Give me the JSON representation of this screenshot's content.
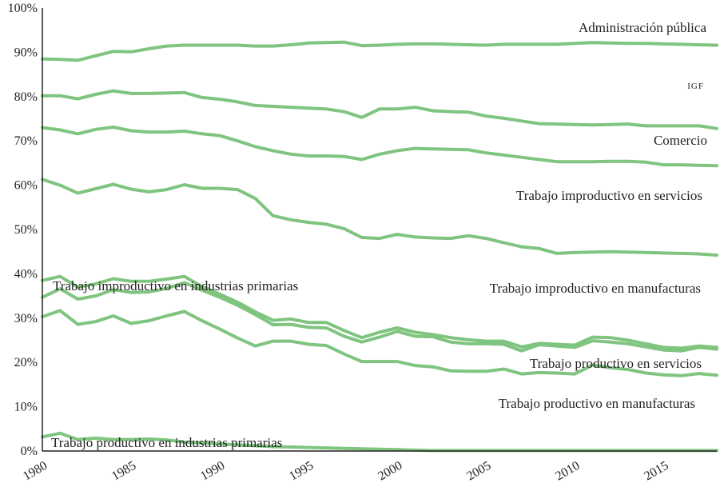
{
  "chart_data": {
    "type": "line",
    "title": "",
    "xlabel": "",
    "ylabel": "",
    "xlim": [
      1980,
      2018
    ],
    "ylim": [
      0,
      100
    ],
    "x_ticks": [
      1980,
      1985,
      1990,
      1995,
      2000,
      2005,
      2010,
      2015
    ],
    "y_ticks": [
      "0%",
      "10%",
      "20%",
      "30%",
      "40%",
      "50%",
      "60%",
      "70%",
      "80%",
      "90%",
      "100%"
    ],
    "x": [
      1980,
      1981,
      1982,
      1983,
      1984,
      1985,
      1986,
      1987,
      1988,
      1989,
      1990,
      1991,
      1992,
      1993,
      1994,
      1995,
      1996,
      1997,
      1998,
      1999,
      2000,
      2001,
      2002,
      2003,
      2004,
      2005,
      2006,
      2007,
      2008,
      2009,
      2010,
      2011,
      2012,
      2013,
      2014,
      2015,
      2016,
      2017,
      2018
    ],
    "series": [
      {
        "name": "Administración pública",
        "values": [
          88.5,
          88.4,
          88.2,
          89.2,
          90.2,
          90.1,
          90.8,
          91.4,
          91.6,
          91.6,
          91.6,
          91.6,
          91.4,
          91.4,
          91.7,
          92.1,
          92.2,
          92.3,
          91.5,
          91.6,
          91.8,
          91.9,
          91.9,
          91.8,
          91.7,
          91.6,
          91.8,
          91.8,
          91.8,
          91.8,
          92.0,
          92.2,
          92.1,
          92.0,
          92.0,
          91.9,
          91.8,
          91.7,
          91.6
        ]
      },
      {
        "name": "IGF",
        "values": [
          80.2,
          80.2,
          79.5,
          80.5,
          81.3,
          80.7,
          80.7,
          80.8,
          80.9,
          79.8,
          79.4,
          78.8,
          78.0,
          77.8,
          77.6,
          77.4,
          77.2,
          76.6,
          75.3,
          77.2,
          77.2,
          77.6,
          76.8,
          76.6,
          76.5,
          75.6,
          75.1,
          74.5,
          73.9,
          73.8,
          73.7,
          73.6,
          73.7,
          73.8,
          73.4,
          73.4,
          73.4,
          73.4,
          72.8
        ]
      },
      {
        "name": "Comercio",
        "values": [
          73.0,
          72.5,
          71.6,
          72.6,
          73.1,
          72.3,
          72.0,
          72.0,
          72.2,
          71.6,
          71.2,
          70.0,
          68.7,
          67.8,
          67.0,
          66.6,
          66.6,
          66.5,
          65.8,
          67.0,
          67.8,
          68.3,
          68.2,
          68.1,
          68.0,
          67.3,
          66.8,
          66.3,
          65.8,
          65.3,
          65.3,
          65.3,
          65.4,
          65.4,
          65.2,
          64.6,
          64.6,
          64.5,
          64.4
        ]
      },
      {
        "name": "Trabajo improductivo en servicios",
        "values": [
          61.3,
          60.0,
          58.2,
          59.2,
          60.2,
          59.1,
          58.5,
          59.0,
          60.1,
          59.3,
          59.3,
          59.0,
          57.0,
          53.1,
          52.2,
          51.6,
          51.2,
          50.2,
          48.2,
          48.0,
          48.9,
          48.3,
          48.1,
          48.0,
          48.6,
          48.0,
          47.0,
          46.1,
          45.7,
          44.6,
          44.8,
          44.9,
          45.0,
          44.9,
          44.8,
          44.7,
          44.6,
          44.5,
          44.2
        ]
      },
      {
        "name": "Trabajo improductivo en manufacturas",
        "values": [
          38.5,
          39.4,
          37.0,
          37.7,
          38.9,
          38.3,
          38.3,
          38.8,
          39.4,
          37.1,
          35.4,
          33.6,
          31.4,
          29.5,
          29.8,
          29.0,
          29.0,
          27.2,
          25.6,
          26.8,
          27.8,
          26.8,
          26.3,
          25.6,
          25.1,
          24.8,
          24.8,
          23.5,
          24.3,
          24.1,
          23.9,
          25.7,
          25.6,
          25.0,
          24.2,
          23.4,
          23.2,
          23.7,
          23.4
        ]
      },
      {
        "name": "Trabajo productivo en servicios",
        "values": [
          34.7,
          36.6,
          34.3,
          35.0,
          36.4,
          35.8,
          35.9,
          36.7,
          38.0,
          36.3,
          34.7,
          32.9,
          30.8,
          28.5,
          28.6,
          27.9,
          27.8,
          25.9,
          24.6,
          25.7,
          27.0,
          25.9,
          25.8,
          24.6,
          24.2,
          24.2,
          24.1,
          22.6,
          24.0,
          23.7,
          23.4,
          24.9,
          24.6,
          24.2,
          23.5,
          22.8,
          22.6,
          23.4,
          23.0
        ]
      },
      {
        "name": "Trabajo productivo en manufacturas",
        "values": [
          30.3,
          31.7,
          28.6,
          29.2,
          30.5,
          28.8,
          29.4,
          30.5,
          31.5,
          29.4,
          27.5,
          25.5,
          23.7,
          24.8,
          24.8,
          24.1,
          23.8,
          21.9,
          20.2,
          20.2,
          20.2,
          19.3,
          19.0,
          18.1,
          18.0,
          18.0,
          18.5,
          17.4,
          17.7,
          17.6,
          17.4,
          19.4,
          18.8,
          18.4,
          17.6,
          17.2,
          17.0,
          17.5,
          17.1
        ]
      },
      {
        "name": "Trabajo productivo en industrias primarias",
        "values": [
          3.2,
          4.0,
          2.6,
          2.9,
          2.6,
          2.6,
          2.7,
          2.5,
          2.0,
          1.8,
          1.6,
          1.4,
          1.2,
          1.0,
          0.9,
          0.8,
          0.7,
          0.6,
          0.5,
          0.4,
          0.3,
          0.2,
          0.1,
          0.1,
          0.1,
          0.1,
          0.1,
          0.1,
          0.1,
          0.1,
          0.1,
          0.1,
          0.1,
          0.1,
          0.1,
          0.1,
          0.1,
          0.1,
          0.1
        ]
      }
    ],
    "annotations": [
      {
        "text": "Administración pública"
      },
      {
        "text": "IGF"
      },
      {
        "text": "Comercio"
      },
      {
        "text": "Trabajo improductivo en servicios"
      },
      {
        "text": "Trabajo improductivo en industrias primarias"
      },
      {
        "text": "Trabajo improductivo en manufacturas"
      },
      {
        "text": "Trabajo productivo en servicios"
      },
      {
        "text": "Trabajo productivo en manufacturas"
      },
      {
        "text": "Trabajo productivo en industrias primarias"
      }
    ],
    "series_color": "#7fc47f",
    "grid": false,
    "legend": "none"
  }
}
